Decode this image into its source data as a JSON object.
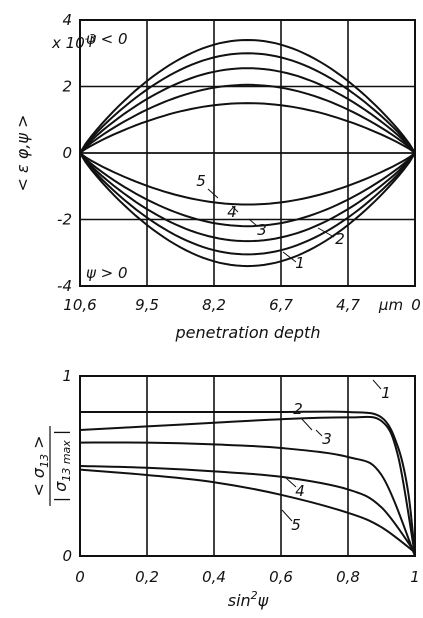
{
  "chart_data": [
    {
      "type": "line",
      "title": "",
      "xlabel": "penetration depth",
      "ylabel": "< ε φ,ψ >",
      "x_unit": "µm",
      "y_multiplier": "x 10",
      "y_multiplier_exp": "-3",
      "x_ticks": [
        "10,6",
        "9,5",
        "8,2",
        "6,7",
        "4,7"
      ],
      "x_tick_last": "0",
      "y_ticks": [
        "4",
        "2",
        "0",
        "-2",
        "-4"
      ],
      "y_ticks_values": [
        4,
        2,
        0,
        -2,
        -4
      ],
      "ylim": [
        -4,
        4
      ],
      "grid": true,
      "annotations": {
        "upper": "ψ < 0",
        "lower": "ψ > 0"
      },
      "series": [
        {
          "name": "1",
          "peaks": [
            3.4,
            -3.4
          ]
        },
        {
          "name": "2",
          "peaks": [
            3.0,
            -3.05
          ]
        },
        {
          "name": "3",
          "peaks": [
            2.55,
            -2.65
          ]
        },
        {
          "name": "4",
          "peaks": [
            2.05,
            -2.2
          ]
        },
        {
          "name": "5",
          "peaks": [
            1.5,
            -1.55
          ]
        }
      ]
    },
    {
      "type": "line",
      "title": "",
      "xlabel": "sin²ψ",
      "ylabel": "< σ13 > / | σ13 max |",
      "x_ticks": [
        "0",
        "0,2",
        "0,4",
        "0,6",
        "0,8",
        "1"
      ],
      "x_ticks_values": [
        0,
        0.2,
        0.4,
        0.6,
        0.8,
        1
      ],
      "y_ticks": [
        "0",
        "1"
      ],
      "xlim": [
        0,
        1
      ],
      "ylim": [
        0,
        1
      ],
      "grid": true,
      "series": [
        {
          "name": "1",
          "x": [
            0,
            0.2,
            0.4,
            0.6,
            0.8,
            0.9,
            0.95,
            0.98,
            1.0
          ],
          "y": [
            0.8,
            0.8,
            0.8,
            0.8,
            0.8,
            0.77,
            0.6,
            0.35,
            0.0
          ]
        },
        {
          "name": "2",
          "x": [
            0,
            0.2,
            0.4,
            0.6,
            0.8,
            0.9,
            0.95,
            1.0
          ],
          "y": [
            0.7,
            0.72,
            0.74,
            0.76,
            0.77,
            0.75,
            0.55,
            0.0
          ]
        },
        {
          "name": "3",
          "x": [
            0,
            0.2,
            0.4,
            0.6,
            0.8,
            0.9,
            1.0
          ],
          "y": [
            0.63,
            0.63,
            0.62,
            0.6,
            0.55,
            0.45,
            0.0
          ]
        },
        {
          "name": "4",
          "x": [
            0,
            0.2,
            0.4,
            0.6,
            0.8,
            0.9,
            1.0
          ],
          "y": [
            0.5,
            0.49,
            0.47,
            0.44,
            0.37,
            0.27,
            0.02
          ]
        },
        {
          "name": "5",
          "x": [
            0,
            0.2,
            0.4,
            0.6,
            0.8,
            0.9,
            1.0
          ],
          "y": [
            0.48,
            0.45,
            0.41,
            0.34,
            0.24,
            0.16,
            0.02
          ]
        }
      ]
    }
  ]
}
